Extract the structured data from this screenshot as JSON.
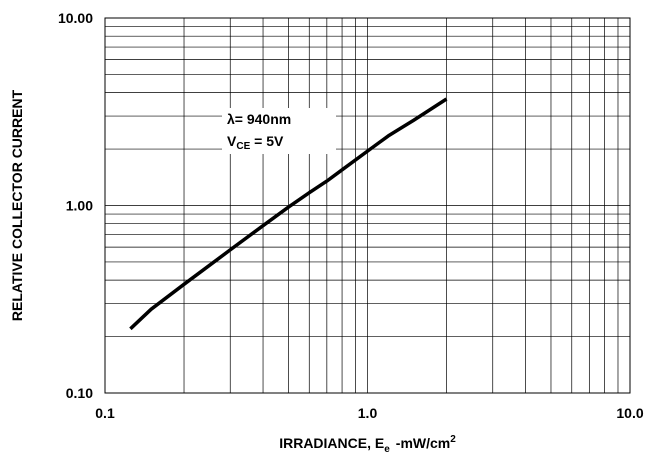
{
  "chart_data": {
    "type": "line",
    "title": "",
    "xlabel_main": "IRRADIANCE, E",
    "xlabel_sub": "e",
    "xlabel_unit": "-mW/cm",
    "xlabel_sup": "2",
    "ylabel": "RELATIVE COLLECTOR  CURRENT",
    "x_scale": "log",
    "y_scale": "log",
    "xlim": [
      0.1,
      10
    ],
    "ylim": [
      0.1,
      10
    ],
    "x_ticks": [
      "0.1",
      "1.0",
      "10.0"
    ],
    "y_ticks": [
      "10.00",
      "1.00",
      "0.10"
    ],
    "grid": true,
    "annotation": {
      "line1": "λ= 940nm",
      "line2_main": "V",
      "line2_sub": "CE",
      "line2_rest": " = 5V"
    },
    "series": [
      {
        "x": [
          0.125,
          0.15,
          0.2,
          0.25,
          0.3,
          0.4,
          0.5,
          0.6,
          0.7,
          0.8,
          1.0,
          1.2,
          1.5,
          2.0
        ],
        "y": [
          0.22,
          0.28,
          0.38,
          0.48,
          0.58,
          0.78,
          0.98,
          1.17,
          1.35,
          1.55,
          1.95,
          2.35,
          2.85,
          3.7
        ]
      }
    ]
  }
}
